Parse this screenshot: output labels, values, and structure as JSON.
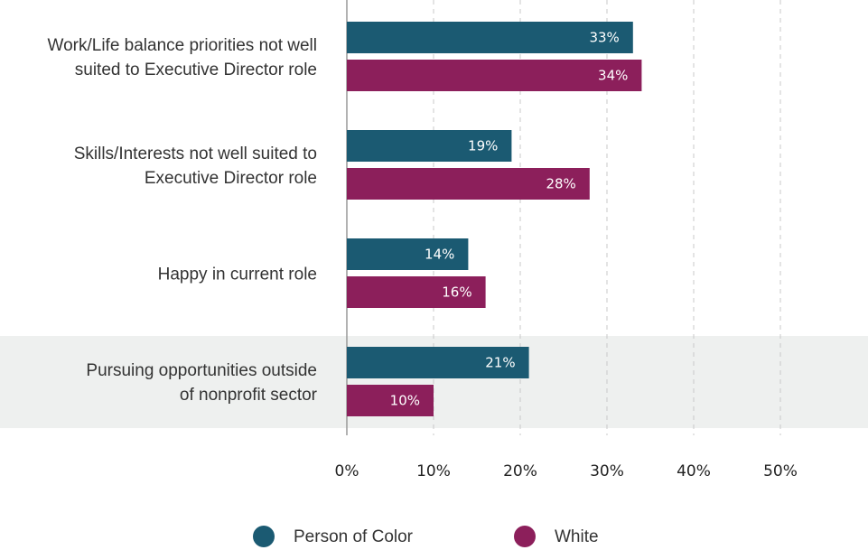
{
  "chart_data": {
    "type": "bar",
    "orientation": "horizontal",
    "categories": [
      [
        "Work/Life balance priorities not well",
        "suited to Executive Director role"
      ],
      [
        "Skills/Interests not well suited to",
        "Executive Director role"
      ],
      [
        "Happy in current role"
      ],
      [
        "Pursuing opportunities outside",
        "of nonprofit sector"
      ]
    ],
    "highlighted_category_index": 3,
    "series": [
      {
        "name": "Person of Color",
        "color": "#1b5a72",
        "values": [
          33,
          19,
          14,
          21
        ],
        "labels": [
          "33%",
          "19%",
          "14%",
          "21%"
        ]
      },
      {
        "name": "White",
        "color": "#8c1f5b",
        "values": [
          34,
          28,
          16,
          10
        ],
        "labels": [
          "34%",
          "28%",
          "16%",
          "10%"
        ]
      }
    ],
    "xlim": [
      0,
      50
    ],
    "xticks": [
      0,
      10,
      20,
      30,
      40,
      50
    ],
    "xtick_labels": [
      "0%",
      "10%",
      "20%",
      "30%",
      "40%",
      "50%"
    ],
    "grid": "vertical-dashed",
    "legend_position": "bottom",
    "highlight_color": "#eef0ef",
    "grid_color": "#c8c8c8",
    "axis_color": "#999999"
  }
}
